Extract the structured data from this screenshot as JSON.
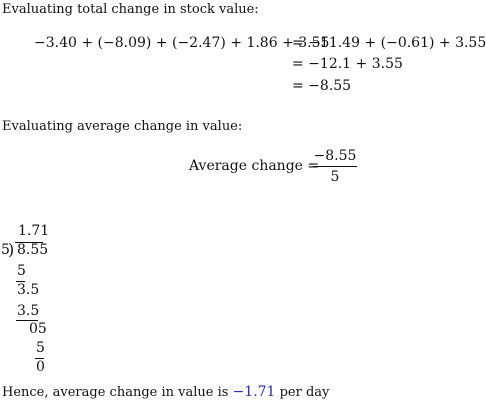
{
  "heading_total": "Evaluating total change in stock value:",
  "total": {
    "lhs": "−3.40 + (−8.09) + (−2.47) + 1.86 + 3.55",
    "eq1": "= −11.49 + (−0.61) + 3.55",
    "eq2": "= −12.1 + 3.55",
    "eq3": "= −8.55"
  },
  "heading_average": "Evaluating average change in value:",
  "average": {
    "lhs": "Average change =",
    "numerator": "−8.55",
    "denominator": "5"
  },
  "division": {
    "quotient": "1.71",
    "divisor": "5",
    "dividend": "8.55",
    "step1": "5",
    "step2": "3.5",
    "step3": "3.5",
    "step4": "05",
    "step5": "5",
    "step6": "0"
  },
  "conclusion": {
    "prefix": "Hence, average change in value is",
    "value": "−1.71",
    "suffix": "per day"
  },
  "colors": {
    "highlight": "#1f2fbf"
  }
}
